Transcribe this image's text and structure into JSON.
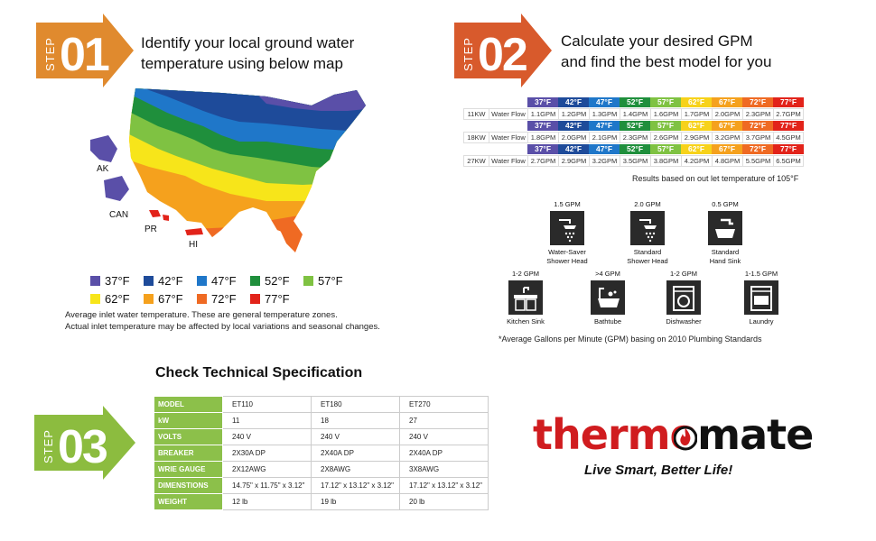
{
  "step1": {
    "word": "STEP",
    "number": "01",
    "heading_line1": "Identify your local ground water",
    "heading_line2": "temperature using below map",
    "color": "#e08a2e"
  },
  "step2": {
    "word": "STEP",
    "number": "02",
    "heading_line1": "Calculate your desired GPM",
    "heading_line2": "and find the best model for you",
    "color": "#d85a2c"
  },
  "step3": {
    "word": "STEP",
    "number": "03",
    "heading": "Check Technical Specification",
    "color": "#8cbc3f"
  },
  "map": {
    "labels": {
      "ak": "AK",
      "can": "CAN",
      "pr": "PR",
      "hi": "HI"
    }
  },
  "legend": [
    [
      {
        "label": "37°F",
        "color": "#5a4fa8"
      },
      {
        "label": "42°F",
        "color": "#1e4b9a"
      },
      {
        "label": "47°F",
        "color": "#1f77c9"
      },
      {
        "label": "52°F",
        "color": "#1f8f3c"
      },
      {
        "label": "57°F",
        "color": "#7fc242"
      }
    ],
    [
      {
        "label": "62°F",
        "color": "#f7e51a"
      },
      {
        "label": "67°F",
        "color": "#f5a11d"
      },
      {
        "label": "72°F",
        "color": "#ef6a23"
      },
      {
        "label": "77°F",
        "color": "#e2231a"
      }
    ]
  ],
  "map_note_line1": "Average inlet water temperature. These are general  temperature zones.",
  "map_note_line2": "Actual inlet temperature may be affected by local variations and seasonal changes.",
  "gpm_table": {
    "temps": [
      "37°F",
      "42°F",
      "47°F",
      "52°F",
      "57°F",
      "62°F",
      "67°F",
      "72°F",
      "77°F"
    ],
    "temp_colors": [
      "#5a4fa8",
      "#1e4b9a",
      "#1f77c9",
      "#1f8f3c",
      "#7fc242",
      "#f7d21a",
      "#f5a11d",
      "#ef6a23",
      "#e2231a"
    ],
    "rows": [
      {
        "kw": "11KW",
        "label": "Water Flow",
        "values": [
          "1.1GPM",
          "1.2GPM",
          "1.3GPM",
          "1.4GPM",
          "1.6GPM",
          "1.7GPM",
          "2.0GPM",
          "2.3GPM",
          "2.7GPM"
        ]
      },
      {
        "kw": "18KW",
        "label": "Water Flow",
        "values": [
          "1.8GPM",
          "2.0GPM",
          "2.1GPM",
          "2.3GPM",
          "2.6GPM",
          "2.9GPM",
          "3.2GPM",
          "3.7GPM",
          "4.5GPM"
        ]
      },
      {
        "kw": "27KW",
        "label": "Water Flow",
        "values": [
          "2.7GPM",
          "2.9GPM",
          "3.2GPM",
          "3.5GPM",
          "3.8GPM",
          "4.2GPM",
          "4.8GPM",
          "5.5GPM",
          "6.5GPM"
        ]
      }
    ]
  },
  "results_note": "Results based on out let temperature of 105°F",
  "fixtures": [
    {
      "gpm": "1.5 GPM",
      "line1": "Water-Saver",
      "line2": "Shower Head",
      "icon": "shower-icon"
    },
    {
      "gpm": "2.0 GPM",
      "line1": "Standard",
      "line2": "Shower Head",
      "icon": "shower-icon"
    },
    {
      "gpm": "0.5 GPM",
      "line1": "Standard",
      "line2": "Hand Sink",
      "icon": "hand-sink-icon"
    },
    {
      "gpm": "1-2 GPM",
      "line1": "Kitchen Sink",
      "line2": "",
      "icon": "kitchen-sink-icon"
    },
    {
      "gpm": ">4 GPM",
      "line1": "Bathtube",
      "line2": "",
      "icon": "bathtub-icon"
    },
    {
      "gpm": "1-2 GPM",
      "line1": "Dishwasher",
      "line2": "",
      "icon": "dishwasher-icon"
    },
    {
      "gpm": "1-1.5 GPM",
      "line1": "Laundry",
      "line2": "",
      "icon": "laundry-icon"
    }
  ],
  "footnote": "*Average Gallons per Minute (GPM) basing on 2010 Plumbing Standards",
  "spec_table": {
    "rows": [
      {
        "label": "MODEL",
        "values": [
          "ET110",
          "ET180",
          "ET270"
        ]
      },
      {
        "label": "kW",
        "values": [
          "11",
          "18",
          "27"
        ]
      },
      {
        "label": "VOLTS",
        "values": [
          "240 V",
          "240 V",
          "240 V"
        ]
      },
      {
        "label": "BREAKER",
        "values": [
          "2X30A DP",
          "2X40A DP",
          "2X40A DP"
        ]
      },
      {
        "label": "WRIE GAUGE",
        "values": [
          "2X12AWG",
          "2X8AWG",
          "3X8AWG"
        ]
      },
      {
        "label": "DIMENSTIONS",
        "values": [
          "14.75\" x 11.75\" x 3.12\"",
          "17.12\" x 13.12\" x  3.12\"",
          "17.12\" x 13.12\" x  3.12\""
        ]
      },
      {
        "label": "WEIGHT",
        "values": [
          "12 lb",
          "19 lb",
          "20 lb"
        ]
      }
    ]
  },
  "brand": {
    "part1": "thermo",
    "part2": "mate",
    "tagline": "Live Smart, Better Life!",
    "red": "#d01c1f"
  }
}
